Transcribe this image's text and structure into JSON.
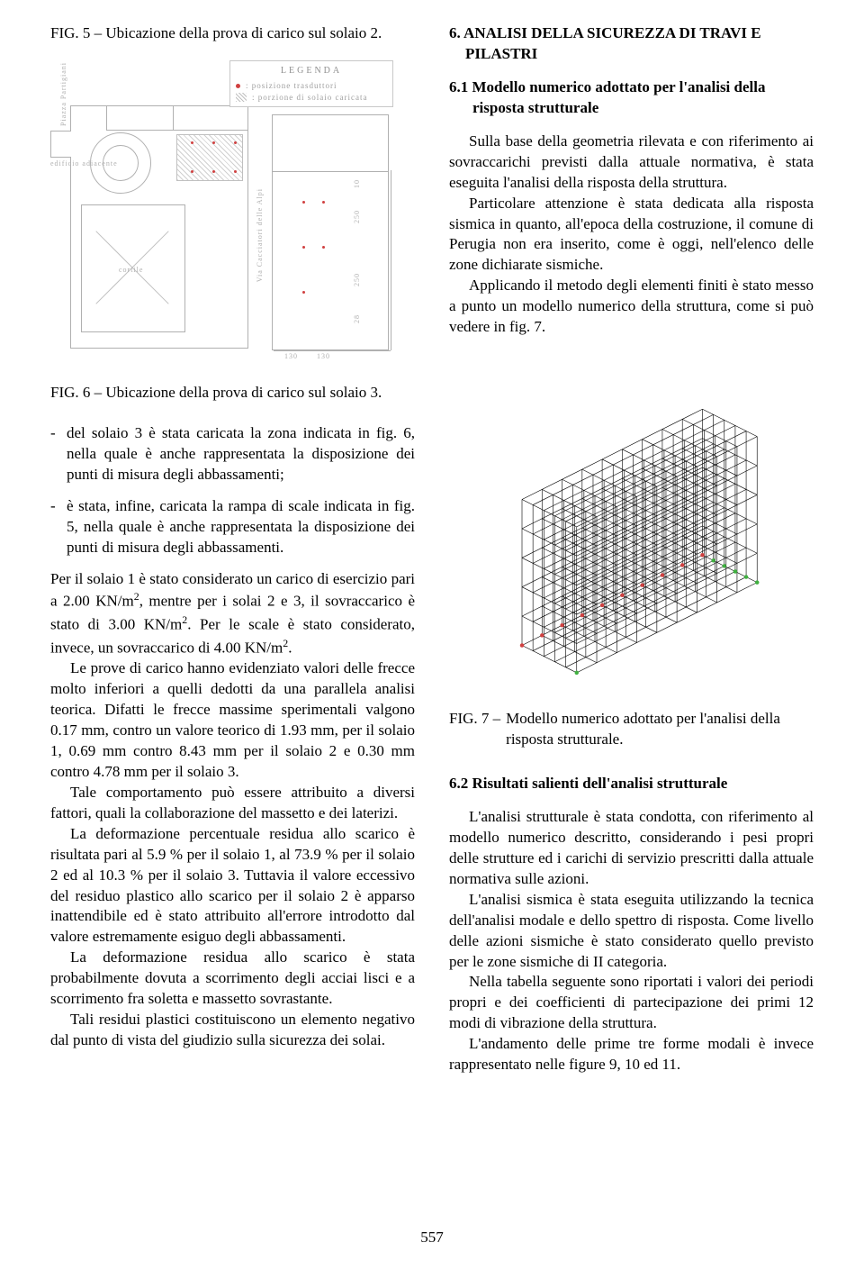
{
  "figures": {
    "fig5": {
      "label": "FIG. 5 –",
      "caption": "Ubicazione della prova di carico sul solaio 2.",
      "legend": {
        "title": "LEGENDA",
        "row1": ": posizione trasduttori",
        "row2": ": porzione di solaio caricata"
      },
      "labels": {
        "piazza": "Piazza Partigiani",
        "via": "Via Cacciatori delle Alpi",
        "edificio": "edificio adiacente",
        "cortile": "cortile",
        "d10": "10",
        "d250a": "250",
        "d250b": "250",
        "d28": "28",
        "d130a": "130",
        "d130b": "130"
      }
    },
    "fig6": {
      "label": "FIG. 6 –",
      "caption": "Ubicazione della prova di carico sul solaio 3."
    },
    "fig7": {
      "label": "FIG. 7 –",
      "caption": "Modello numerico adottato per l'analisi della risposta strutturale."
    }
  },
  "left": {
    "list": {
      "item1": "del solaio 3 è stata caricata la zona indicata in fig. 6, nella quale è anche rappresentata la disposizione dei punti di misura degli abbassamenti;",
      "item2": "è stata, infine, caricata la rampa di scale indicata in fig. 5, nella quale è anche rappresentata la disposizione dei punti di misura degli abbassamenti."
    },
    "p1_html": "Per il solaio 1 è stato considerato un carico di esercizio pari a 2.00 KN/m<sup>2</sup>, mentre per i solai 2 e 3, il sovraccarico è stato di 3.00 KN/m<sup>2</sup>. Per le scale è stato considerato, invece, un sovraccarico di 4.00 KN/m<sup>2</sup>.",
    "p2": "Le prove di carico hanno evidenziato valori delle frecce molto inferiori a quelli dedotti da una parallela analisi teorica. Difatti le frecce massime sperimentali valgono 0.17 mm, contro un valore teorico di 1.93 mm, per il solaio 1, 0.69 mm contro 8.43 mm per il solaio 2 e 0.30 mm contro 4.78 mm per il solaio 3.",
    "p3": "Tale comportamento può essere attribuito a diversi fattori, quali la collaborazione del massetto e dei laterizi.",
    "p4": "La deformazione percentuale residua allo scarico è risultata pari al 5.9 % per il solaio 1, al 73.9 % per il solaio 2 ed al 10.3 % per il solaio 3. Tuttavia il valore eccessivo del residuo plastico allo scarico per il solaio 2 è apparso inattendibile ed è stato attribuito all'errore introdotto dal valore estremamente esiguo degli abbassamenti.",
    "p5": "La deformazione residua allo scarico è stata probabilmente dovuta a scorrimento degli acciai lisci e a scorrimento fra soletta e massetto sovrastante.",
    "p6": "Tali residui plastici costituiscono un elemento negativo dal punto di vista del giudizio sulla sicurezza dei solai."
  },
  "right": {
    "section6_title": "6. ANALISI DELLA SICUREZZA DI TRAVI E PILASTRI",
    "sub61_title": "6.1 Modello numerico adottato per l'analisi della risposta strutturale",
    "p1": "Sulla base della geometria rilevata e con riferimento ai sovraccarichi previsti dalla attuale normativa, è stata eseguita l'analisi della risposta della struttura.",
    "p2": "Particolare attenzione è stata dedicata alla risposta sismica in quanto, all'epoca della costruzione, il comune di Perugia non era inserito, come è oggi, nell'elenco delle zone dichiarate sismiche.",
    "p3": "Applicando il metodo degli elementi finiti è stato messo a punto un modello numerico della struttura, come si può vedere in fig. 7.",
    "sub62_title": "6.2 Risultati salienti dell'analisi strutturale",
    "p4": "L'analisi strutturale è stata condotta, con riferimento al modello numerico descritto, considerando i pesi propri delle strutture ed i carichi di servizio prescritti dalla attuale normativa sulle azioni.",
    "p5": "L'analisi sismica è stata eseguita utilizzando la tecnica dell'analisi modale e dello spettro di risposta. Come livello delle azioni sismiche è stato considerato quello previsto per le zone sismiche di II categoria.",
    "p6": "Nella tabella seguente sono riportati i valori dei periodi propri e dei coefficienti di partecipazione dei primi 12 modi di vibrazione della struttura.",
    "p7": "L'andamento delle prime tre forme modali è invece rappresentato nelle figure 9, 10 ed 11."
  },
  "page_number": "557"
}
